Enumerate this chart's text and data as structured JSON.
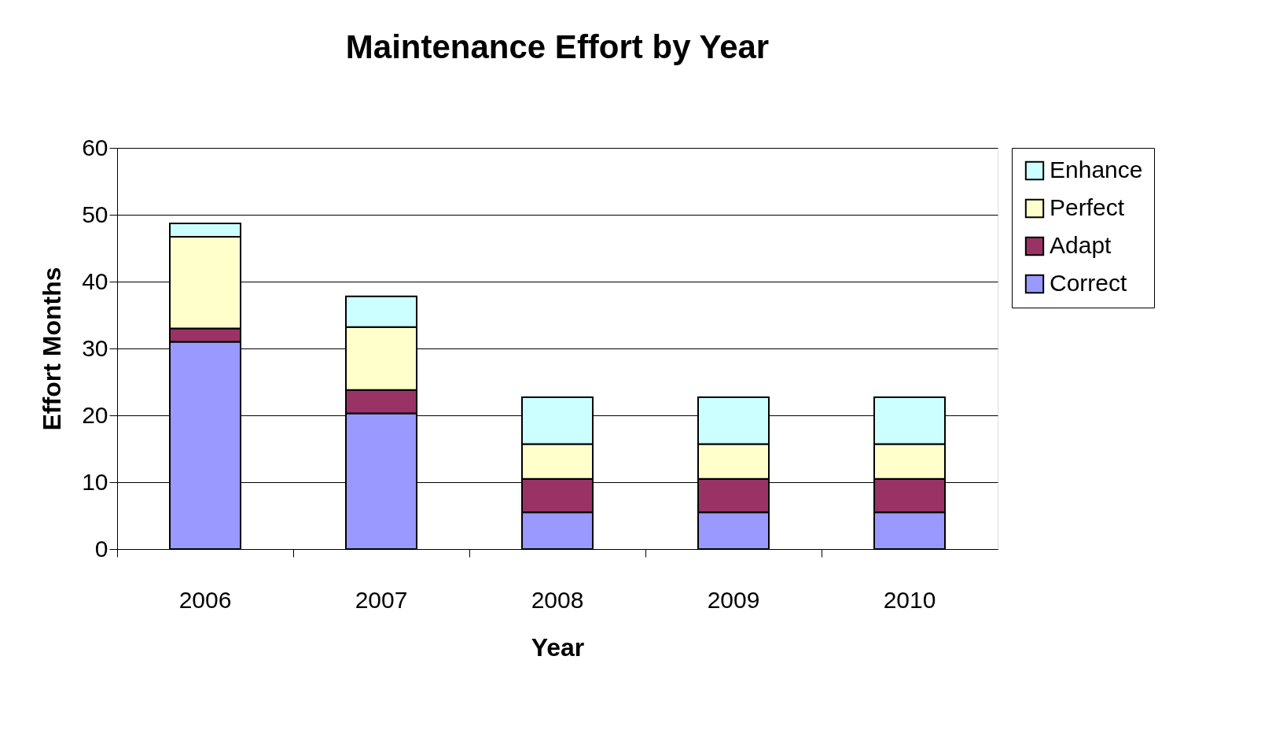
{
  "chart_data": {
    "type": "bar",
    "title": "Maintenance Effort by Year",
    "xlabel": "Year",
    "ylabel": "Effort Months",
    "categories": [
      "2006",
      "2007",
      "2008",
      "2009",
      "2010"
    ],
    "stacked": true,
    "series": [
      {
        "name": "Correct",
        "color": "#9999ff",
        "values": [
          31,
          20.3,
          5.5,
          5.5,
          5.5
        ]
      },
      {
        "name": "Adapt",
        "color": "#993366",
        "values": [
          2,
          3.5,
          5,
          5,
          5
        ]
      },
      {
        "name": "Perfect",
        "color": "#ffffcc",
        "values": [
          13.7,
          9.4,
          5.2,
          5.2,
          5.2
        ]
      },
      {
        "name": "Enhance",
        "color": "#ccffff",
        "values": [
          2,
          4.6,
          7,
          7,
          7
        ]
      }
    ],
    "ylim": [
      0,
      60
    ],
    "yticks": [
      0,
      10,
      20,
      30,
      40,
      50,
      60
    ],
    "grid": "y",
    "legend": "right"
  }
}
